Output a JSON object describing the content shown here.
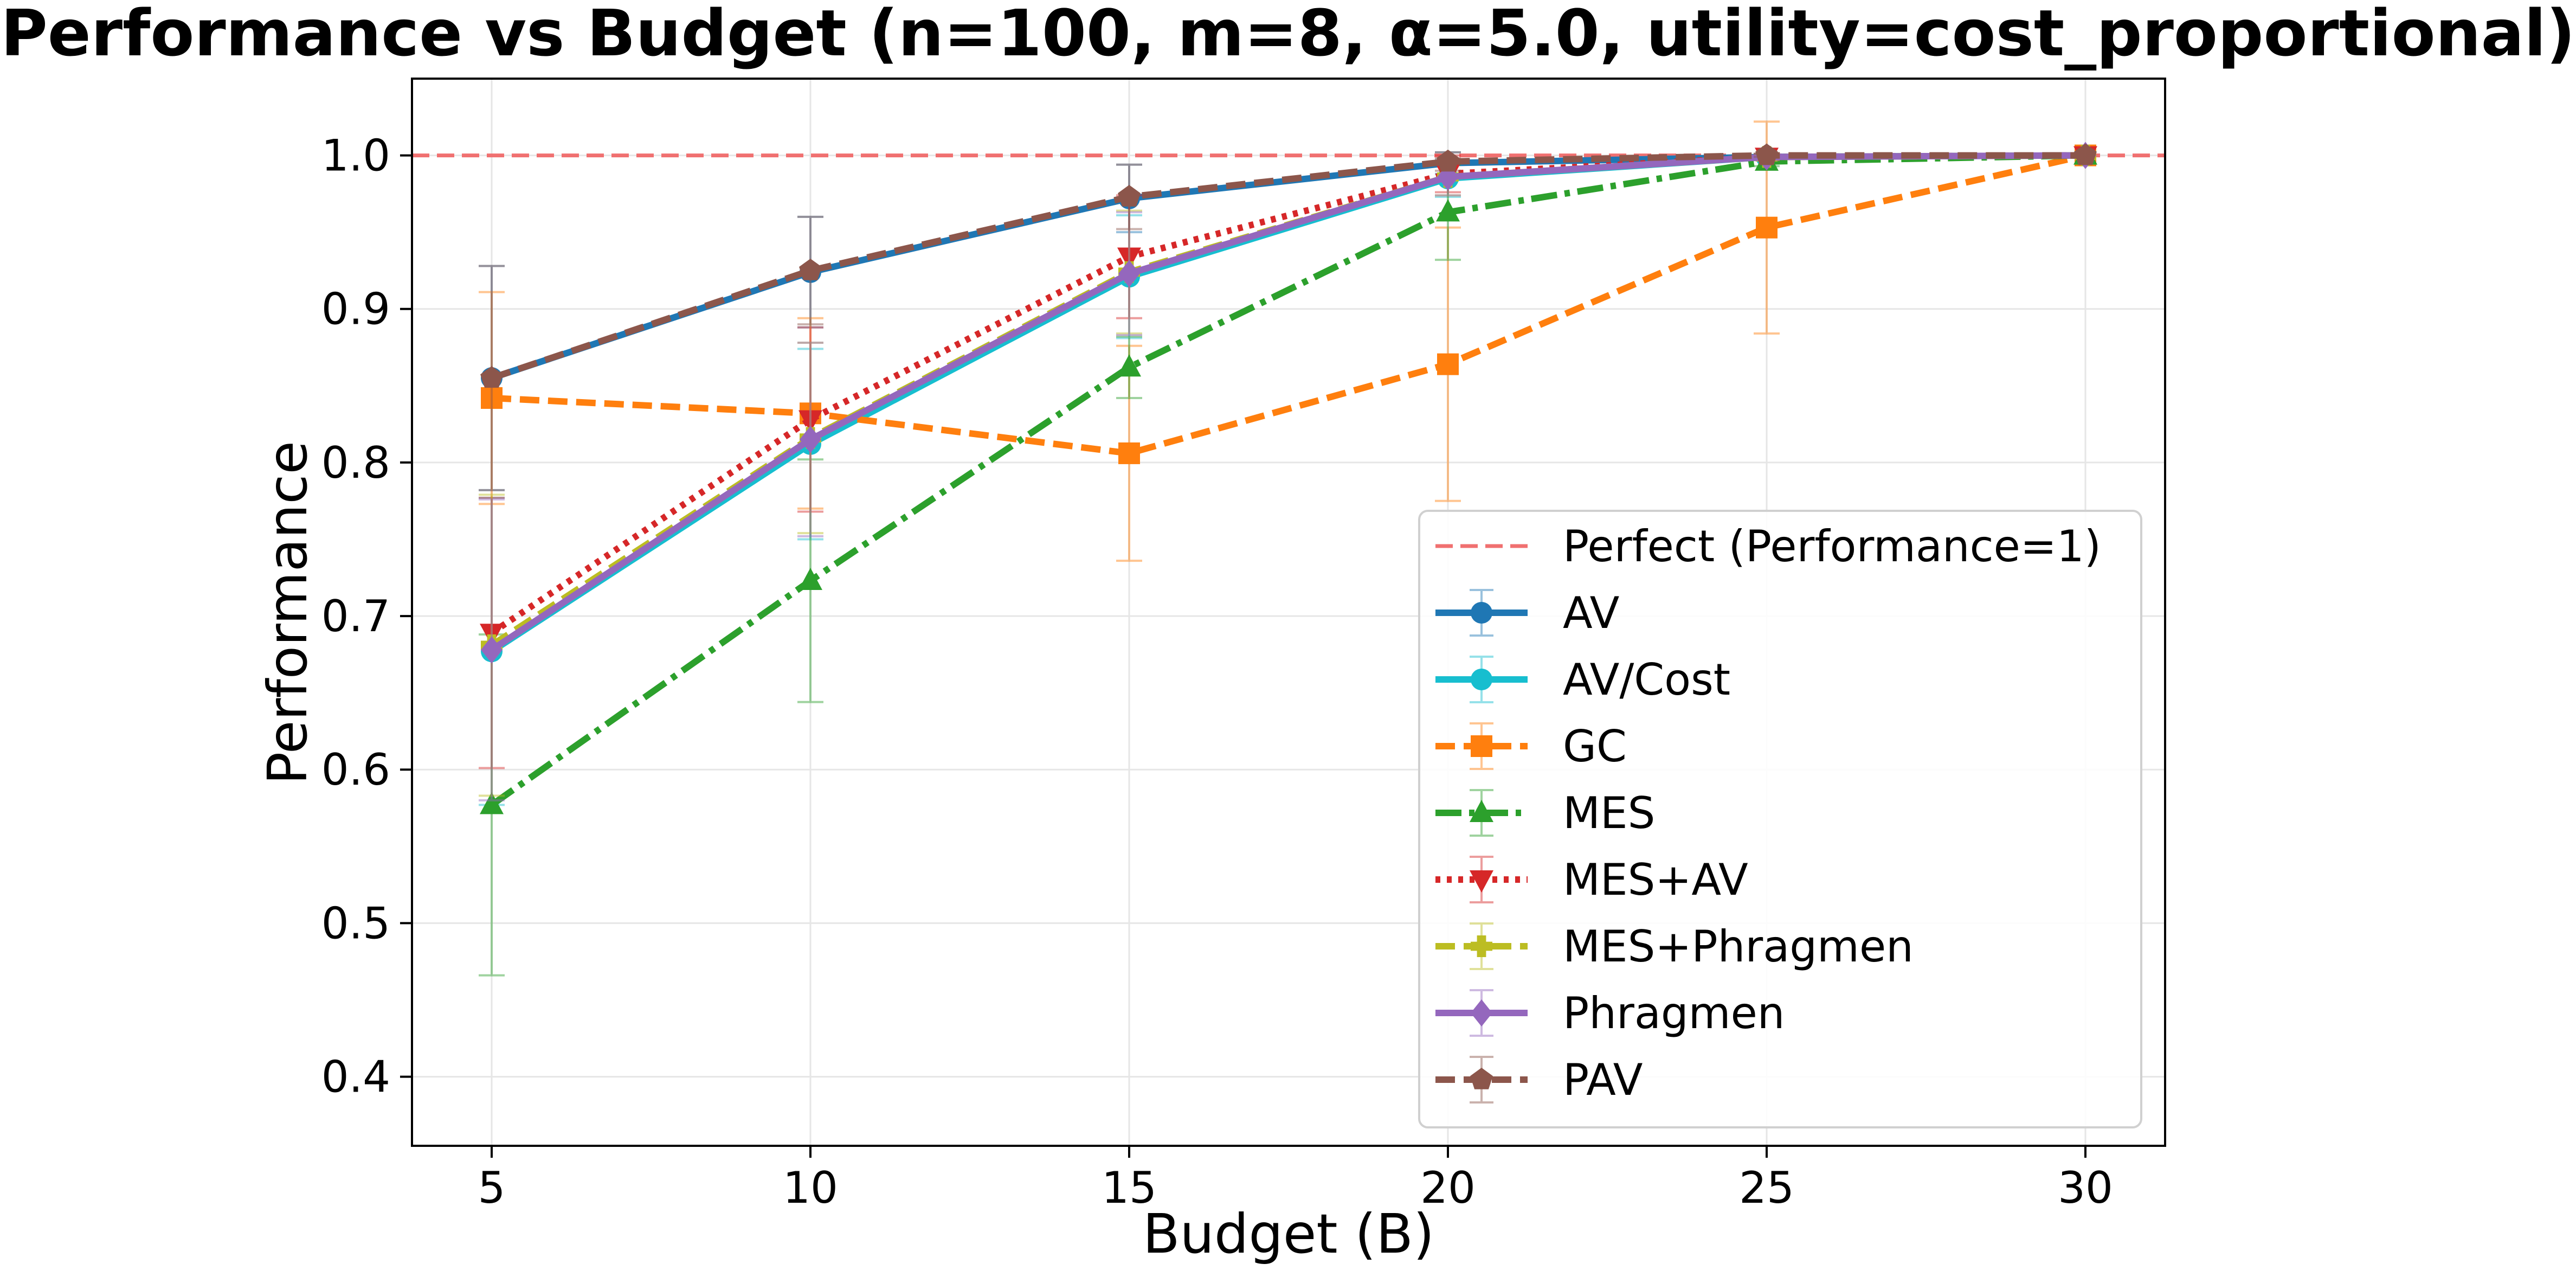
{
  "chart_data": {
    "type": "line",
    "title": "Performance vs Budget (n=100, m=8, α=5.0, utility=cost_proportional)",
    "xlabel": "Budget (B)",
    "ylabel": "Performance",
    "xlim": [
      3.75,
      31.25
    ],
    "ylim": [
      0.355,
      1.05
    ],
    "x_ticks": [
      5,
      10,
      15,
      20,
      25,
      30
    ],
    "y_ticks": [
      0.4,
      0.5,
      0.6,
      0.7,
      0.8,
      0.9,
      1.0
    ],
    "grid": true,
    "legend_position": "lower-right",
    "x": [
      5,
      10,
      15,
      20,
      25,
      30
    ],
    "reference_line": {
      "label": "Perfect (Performance=1)",
      "y": 1.0,
      "color": "#f07070",
      "style": "dashed"
    },
    "series": [
      {
        "name": "AV",
        "color": "#1f77b4",
        "dash": "solid",
        "marker": "circle",
        "values": [
          0.855,
          0.924,
          0.972,
          0.995,
          0.999,
          1.0
        ],
        "errors": [
          0.073,
          0.036,
          0.022,
          0.007,
          0.002,
          0.0
        ]
      },
      {
        "name": "AV/Cost",
        "color": "#17becf",
        "dash": "solid",
        "marker": "circle",
        "values": [
          0.677,
          0.812,
          0.921,
          0.985,
          0.999,
          1.0
        ],
        "errors": [
          0.1,
          0.062,
          0.04,
          0.012,
          0.002,
          0.0
        ]
      },
      {
        "name": "GC",
        "color": "#ff7f0e",
        "dash": "dashed",
        "marker": "square",
        "values": [
          0.842,
          0.832,
          0.806,
          0.864,
          0.953,
          1.0
        ],
        "errors": [
          0.069,
          0.062,
          0.07,
          0.089,
          0.069,
          0.0
        ]
      },
      {
        "name": "MES",
        "color": "#2ca02c",
        "dash": "dashdot",
        "marker": "triangle-up",
        "values": [
          0.577,
          0.723,
          0.862,
          0.963,
          0.996,
          1.0
        ],
        "errors": [
          0.111,
          0.079,
          0.02,
          0.031,
          0.003,
          0.0
        ]
      },
      {
        "name": "MES+AV",
        "color": "#d62728",
        "dash": "dotted",
        "marker": "triangle-down",
        "values": [
          0.689,
          0.828,
          0.934,
          0.988,
          0.999,
          1.0
        ],
        "errors": [
          0.088,
          0.06,
          0.04,
          0.012,
          0.002,
          0.0
        ]
      },
      {
        "name": "MES+Phragmen",
        "color": "#bcbd22",
        "dash": "dashed",
        "marker": "plus",
        "values": [
          0.681,
          0.816,
          0.924,
          0.986,
          0.999,
          1.0
        ],
        "errors": [
          0.098,
          0.062,
          0.04,
          0.012,
          0.002,
          0.0
        ]
      },
      {
        "name": "Phragmen",
        "color": "#9467bd",
        "dash": "solid",
        "marker": "diamond",
        "values": [
          0.678,
          0.815,
          0.923,
          0.986,
          0.999,
          1.0
        ],
        "errors": [
          0.098,
          0.063,
          0.04,
          0.012,
          0.002,
          0.0
        ]
      },
      {
        "name": "PAV",
        "color": "#8c564b",
        "dash": "dashed",
        "marker": "pentagon",
        "values": [
          0.855,
          0.925,
          0.973,
          0.996,
          1.0,
          1.0
        ],
        "errors": [
          0.073,
          0.035,
          0.021,
          0.006,
          0.001,
          0.0
        ]
      }
    ]
  }
}
